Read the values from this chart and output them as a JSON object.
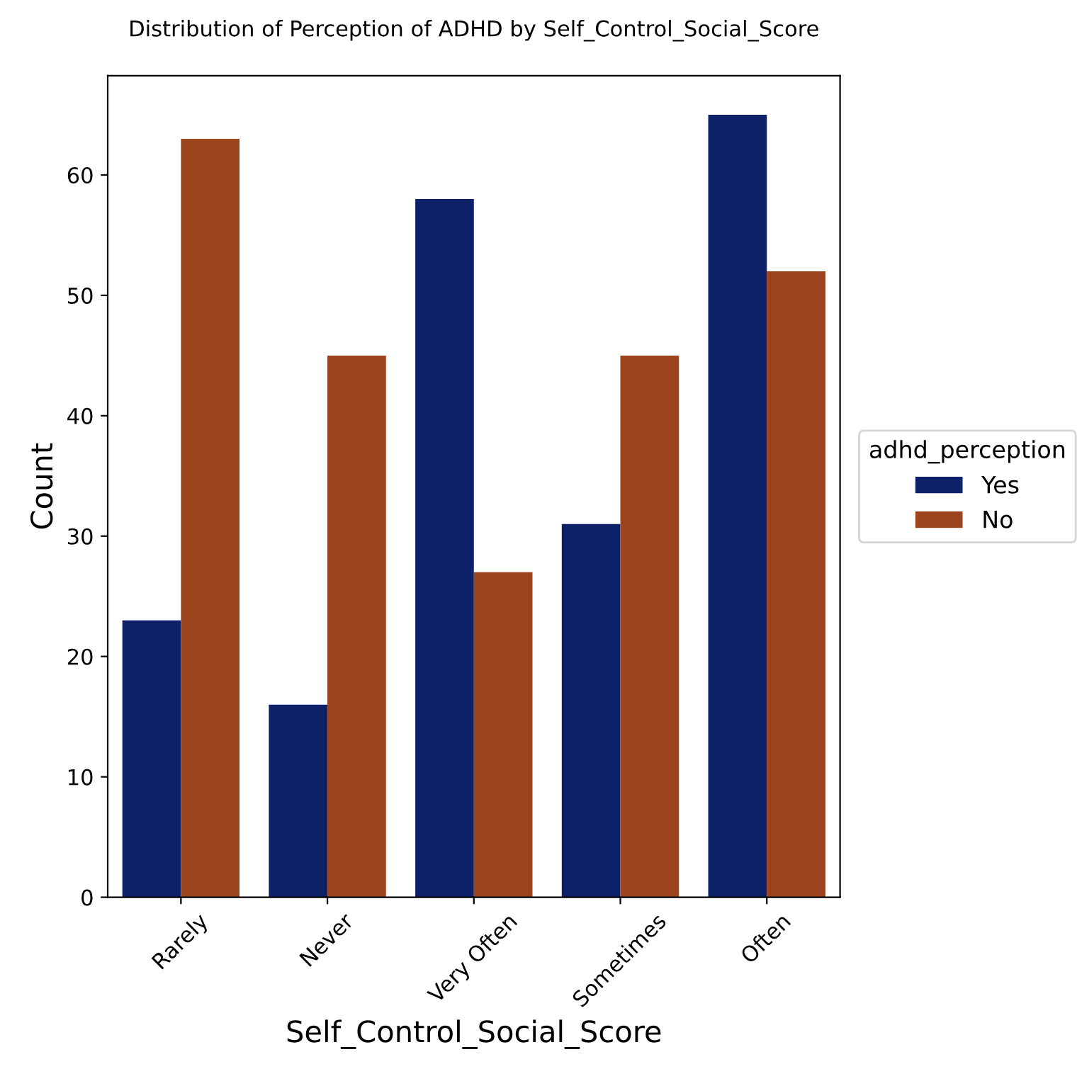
{
  "chart_data": {
    "type": "bar",
    "title": "Distribution of Perception of ADHD by Self_Control_Social_Score",
    "xlabel": "Self_Control_Social_Score",
    "ylabel": "Count",
    "legend_title": "adhd_perception",
    "categories": [
      "Rarely",
      "Never",
      "Very Often",
      "Sometimes",
      "Often"
    ],
    "series": [
      {
        "name": "Yes",
        "color": "#0d2168",
        "values": [
          23,
          16,
          58,
          31,
          65
        ]
      },
      {
        "name": "No",
        "color": "#9c441d",
        "values": [
          63,
          45,
          27,
          45,
          52
        ]
      }
    ],
    "ylim": [
      0,
      68.25
    ],
    "yticks": [
      0,
      10,
      20,
      30,
      40,
      50,
      60
    ],
    "grid": false,
    "legend": "right"
  }
}
